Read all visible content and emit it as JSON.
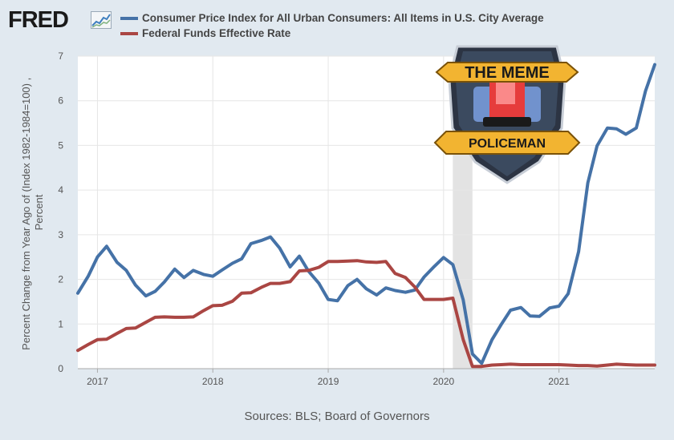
{
  "header": {
    "logo_text": "FRED",
    "logo_mark": "fred-chart-icon"
  },
  "badge": {
    "text_top": "THE MEME",
    "text_bottom": "POLICEMAN",
    "icon": "police-siren-icon"
  },
  "footer": {
    "source": "Sources: BLS; Board of Governors"
  },
  "colors": {
    "cpi": "#4572a7",
    "ffr": "#aa4643",
    "recession": "#e3e3e3",
    "grid": "#e6e6e6"
  },
  "chart_data": {
    "type": "line",
    "title": "",
    "ylabel": "Percent Change from Year Ago of (Index 1982-1984=100) , Percent",
    "xlabel": "",
    "xlim": [
      2016.83,
      2021.83
    ],
    "ylim": [
      0,
      7
    ],
    "yticks": [
      0,
      1,
      2,
      3,
      4,
      5,
      6,
      7
    ],
    "xticks": [
      {
        "label": "2017",
        "value": 2017
      },
      {
        "label": "2018",
        "value": 2018
      },
      {
        "label": "2019",
        "value": 2019
      },
      {
        "label": "2020",
        "value": 2020
      },
      {
        "label": "2021",
        "value": 2021
      }
    ],
    "grid": true,
    "legend_position": "top",
    "recession": {
      "start": 2020.08,
      "end": 2020.25
    },
    "x": [
      2016.83,
      2016.92,
      2017.0,
      2017.08,
      2017.17,
      2017.25,
      2017.33,
      2017.42,
      2017.5,
      2017.58,
      2017.67,
      2017.75,
      2017.83,
      2017.92,
      2018.0,
      2018.08,
      2018.17,
      2018.25,
      2018.33,
      2018.42,
      2018.5,
      2018.58,
      2018.67,
      2018.75,
      2018.83,
      2018.92,
      2019.0,
      2019.08,
      2019.17,
      2019.25,
      2019.33,
      2019.42,
      2019.5,
      2019.58,
      2019.67,
      2019.75,
      2019.83,
      2019.92,
      2020.0,
      2020.08,
      2020.17,
      2020.25,
      2020.33,
      2020.42,
      2020.5,
      2020.58,
      2020.67,
      2020.75,
      2020.83,
      2020.92,
      2021.0,
      2021.08,
      2021.17,
      2021.25,
      2021.33,
      2021.42,
      2021.5,
      2021.58,
      2021.67,
      2021.75,
      2021.83
    ],
    "series": [
      {
        "name": "Consumer Price Index for All Urban Consumers: All Items in U.S. City Average",
        "color": "#4572a7",
        "values": [
          1.69,
          2.07,
          2.5,
          2.74,
          2.38,
          2.2,
          1.87,
          1.63,
          1.73,
          1.94,
          2.23,
          2.04,
          2.2,
          2.11,
          2.07,
          2.21,
          2.36,
          2.46,
          2.8,
          2.87,
          2.95,
          2.7,
          2.28,
          2.52,
          2.18,
          1.91,
          1.55,
          1.52,
          1.86,
          2.0,
          1.79,
          1.65,
          1.81,
          1.75,
          1.71,
          1.76,
          2.05,
          2.29,
          2.49,
          2.33,
          1.54,
          0.33,
          0.12,
          0.65,
          0.99,
          1.31,
          1.37,
          1.18,
          1.17,
          1.36,
          1.4,
          1.68,
          2.62,
          4.16,
          4.99,
          5.39,
          5.37,
          5.25,
          5.39,
          6.22,
          6.81
        ]
      },
      {
        "name": "Federal Funds Effective Rate",
        "color": "#aa4643",
        "values": [
          0.41,
          0.54,
          0.65,
          0.66,
          0.79,
          0.9,
          0.91,
          1.04,
          1.15,
          1.16,
          1.15,
          1.15,
          1.16,
          1.3,
          1.41,
          1.42,
          1.51,
          1.69,
          1.7,
          1.82,
          1.91,
          1.91,
          1.95,
          2.19,
          2.2,
          2.27,
          2.4,
          2.4,
          2.41,
          2.42,
          2.39,
          2.38,
          2.4,
          2.13,
          2.04,
          1.83,
          1.55,
          1.55,
          1.55,
          1.58,
          0.65,
          0.05,
          0.05,
          0.08,
          0.09,
          0.1,
          0.09,
          0.09,
          0.09,
          0.09,
          0.09,
          0.08,
          0.07,
          0.07,
          0.06,
          0.08,
          0.1,
          0.09,
          0.08,
          0.08,
          0.08
        ]
      }
    ]
  }
}
